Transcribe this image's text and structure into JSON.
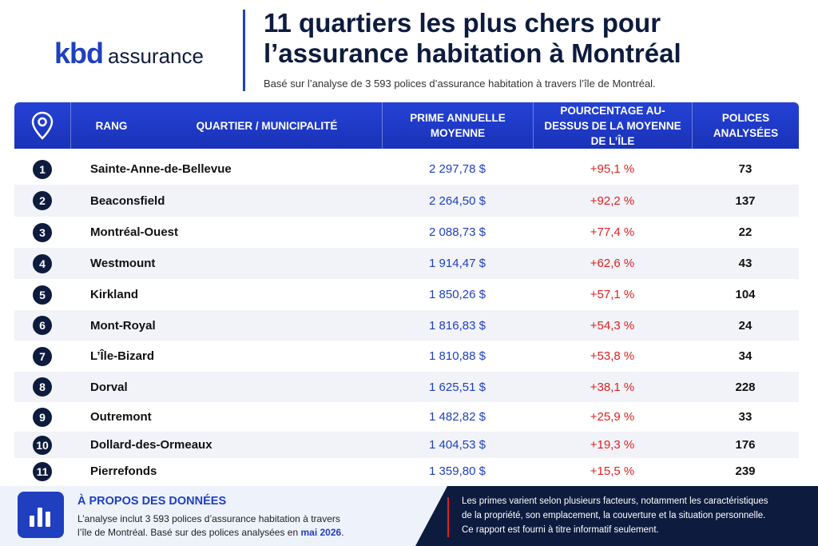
{
  "logo": {
    "brand": "kbd",
    "suffix": "assurance"
  },
  "header": {
    "title_line1": "11 quartiers les plus chers pour",
    "title_line2": "l’assurance habitation à Montréal",
    "subtitle": "Basé sur l’analyse de 3 593 polices d’assurance habitation à travers l’île de Montréal."
  },
  "table": {
    "columns": [
      "RANG",
      "QUARTIER / MUNICIPALITÉ",
      "PRIME ANNUELLE MOYENNE",
      "POURCENTAGE AU-DESSUS DE LA MOYENNE DE L’ÎLE",
      "POLICES ANALYSÉES"
    ],
    "rows": [
      [
        "1",
        "Sainte-Anne-de-Bellevue",
        "2 297,78 $",
        "+95,1 %",
        "73"
      ],
      [
        "2",
        "Beaconsfield",
        "2 264,50 $",
        "+92,2 %",
        "137"
      ],
      [
        "3",
        "Montréal-Ouest",
        "2 088,73 $",
        "+77,4 %",
        "22"
      ],
      [
        "4",
        "Westmount",
        "1 914,47 $",
        "+62,6 %",
        "43"
      ],
      [
        "5",
        "Kirkland",
        "1 850,26 $",
        "+57,1 %",
        "104"
      ],
      [
        "6",
        "Mont-Royal",
        "1 816,83 $",
        "+54,3 %",
        "24"
      ],
      [
        "7",
        "L’Île-Bizard",
        "1 810,88 $",
        "+53,8 %",
        "34"
      ],
      [
        "8",
        "Dorval",
        "1 625,51 $",
        "+38,1 %",
        "228"
      ],
      [
        "9",
        "Outremont",
        "1 482,82 $",
        "+25,9 %",
        "33"
      ],
      [
        "10",
        "Dollard-des-Ormeaux",
        "1 404,53 $",
        "+19,3 %",
        "176"
      ],
      [
        "11",
        "Pierrefonds",
        "1 359,80 $",
        "+15,5 %",
        "239"
      ]
    ]
  },
  "about": {
    "title": "À PROPOS DES DONNÉES",
    "line1": "L’analyse inclut 3 593 polices d’assurance habitation à travers",
    "line2": "l’île de Montréal. Basé sur des polices analysées en ",
    "date": "mai 2026",
    "end": "."
  },
  "note": {
    "lines": [
      "Les primes varient selon plusieurs facteurs, notamment les caractéristiques",
      "de la propriété, son emplacement, la couverture et la situation personnelle.",
      "Ce rapport est fourni à titre informatif seulement."
    ]
  }
}
